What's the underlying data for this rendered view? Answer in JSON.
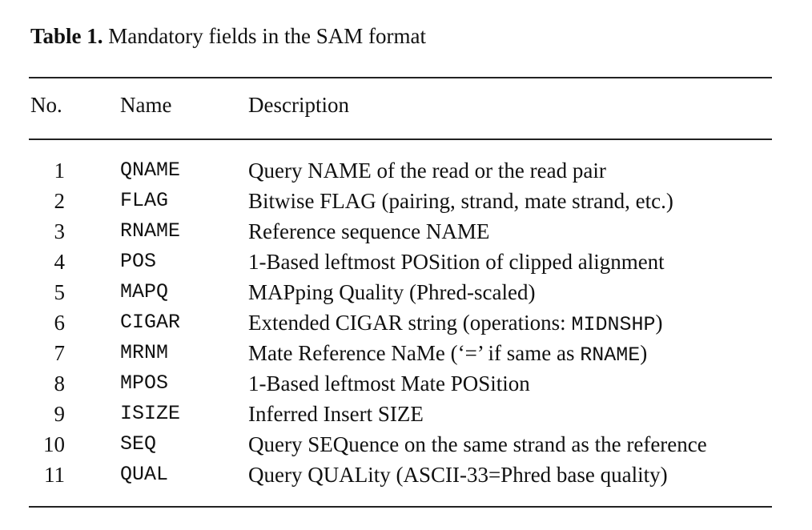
{
  "caption": {
    "label": "Table 1.",
    "text": "Mandatory fields in the SAM format"
  },
  "headers": {
    "no": "No.",
    "name": "Name",
    "description": "Description"
  },
  "rows": [
    {
      "no": "1",
      "name": "QNAME",
      "desc": "Query NAME of the read or the read pair"
    },
    {
      "no": "2",
      "name": "FLAG",
      "desc": "Bitwise FLAG (pairing, strand, mate strand, etc.)"
    },
    {
      "no": "3",
      "name": "RNAME",
      "desc": "Reference sequence NAME"
    },
    {
      "no": "4",
      "name": "POS",
      "desc": "1-Based leftmost POSition of clipped alignment"
    },
    {
      "no": "5",
      "name": "MAPQ",
      "desc": "MAPping Quality (Phred-scaled)"
    },
    {
      "no": "6",
      "name": "CIGAR",
      "desc_pre": "Extended CIGAR string (operations: ",
      "desc_mono": "MIDNSHP",
      "desc_post": ")"
    },
    {
      "no": "7",
      "name": "MRNM",
      "desc_pre": "Mate Reference NaMe (‘=’ if same as ",
      "desc_mono": "RNAME",
      "desc_post": ")"
    },
    {
      "no": "8",
      "name": "MPOS",
      "desc": "1-Based leftmost Mate POSition"
    },
    {
      "no": "9",
      "name": "ISIZE",
      "desc": "Inferred Insert SIZE"
    },
    {
      "no": "10",
      "name": "SEQ",
      "desc": "Query SEQuence on the same strand as the reference"
    },
    {
      "no": "11",
      "name": "QUAL",
      "desc": "Query QUALity (ASCII-33=Phred base quality)"
    }
  ]
}
